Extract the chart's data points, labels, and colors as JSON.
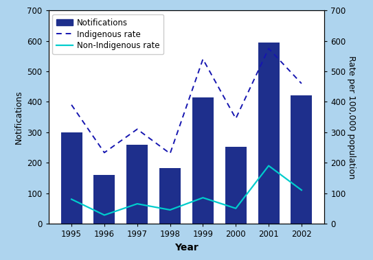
{
  "years": [
    1995,
    1996,
    1997,
    1998,
    1999,
    2000,
    2001,
    2002
  ],
  "notifications": [
    300,
    160,
    260,
    183,
    415,
    252,
    595,
    422
  ],
  "indigenous_rate": [
    390,
    233,
    310,
    230,
    540,
    345,
    575,
    460
  ],
  "non_indigenous_rate": [
    80,
    28,
    65,
    45,
    85,
    50,
    190,
    110
  ],
  "bar_color": "#1e2f8c",
  "indigenous_color": "#1515b0",
  "non_indigenous_color": "#00cccc",
  "background_color": "#aed4ee",
  "plot_bg_color": "#ffffff",
  "ylim": [
    0,
    700
  ],
  "ylabel_left": "Notifications",
  "ylabel_right": "Rate per 100,000 population",
  "xlabel": "Year",
  "legend_labels": [
    "Notifications",
    "Indigenous rate",
    "Non-Indigenous rate"
  ],
  "axis_fontsize": 9,
  "tick_fontsize": 8.5,
  "legend_fontsize": 8.5
}
